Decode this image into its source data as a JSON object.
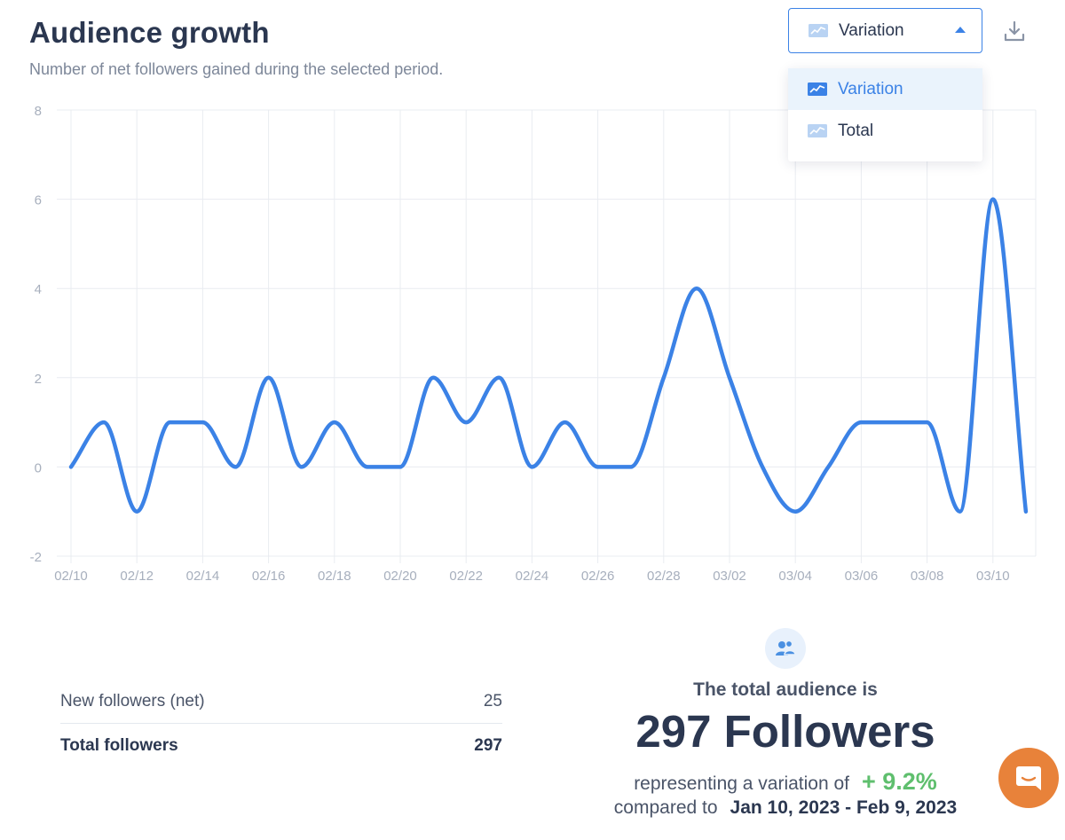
{
  "header": {
    "title": "Audience growth",
    "subtitle": "Number of net followers gained during the selected period."
  },
  "view_select": {
    "selected": "Variation",
    "options": [
      {
        "label": "Variation",
        "active": true
      },
      {
        "label": "Total",
        "active": false
      }
    ]
  },
  "icons": {
    "download": "download-icon",
    "chart": "line-chart-icon",
    "audience": "users-icon",
    "chat": "chat-icon"
  },
  "colors": {
    "accent": "#3b82e6",
    "positive": "#5fbf6e",
    "chat": "#e8823a"
  },
  "chart_data": {
    "type": "line",
    "title": "",
    "xlabel": "",
    "ylabel": "",
    "ylim": [
      -2,
      8
    ],
    "y_ticks": [
      -2,
      0,
      2,
      4,
      6,
      8
    ],
    "x_ticks": [
      "02/10",
      "02/12",
      "02/14",
      "02/16",
      "02/18",
      "02/20",
      "02/22",
      "02/24",
      "02/26",
      "02/28",
      "03/02",
      "03/04",
      "03/06",
      "03/08",
      "03/10"
    ],
    "categories": [
      "02/10",
      "02/11",
      "02/12",
      "02/13",
      "02/14",
      "02/15",
      "02/16",
      "02/17",
      "02/18",
      "02/19",
      "02/20",
      "02/21",
      "02/22",
      "02/23",
      "02/24",
      "02/25",
      "02/26",
      "02/27",
      "02/28",
      "03/01",
      "03/02",
      "03/03",
      "03/04",
      "03/05",
      "03/06",
      "03/07",
      "03/08",
      "03/09",
      "03/10",
      "03/11"
    ],
    "series": [
      {
        "name": "Variation",
        "values": [
          0,
          1,
          -1,
          1,
          1,
          0,
          2,
          0,
          1,
          0,
          0,
          2,
          1,
          2,
          0,
          1,
          0,
          0,
          2,
          4,
          2,
          0,
          -1,
          0,
          1,
          1,
          1,
          -1,
          6,
          -1
        ]
      }
    ],
    "grid": true,
    "legend": "none"
  },
  "stats": {
    "new_followers_label": "New followers (net)",
    "new_followers_value": "25",
    "total_followers_label": "Total followers",
    "total_followers_value": "297"
  },
  "audience": {
    "heading": "The total audience is",
    "count": "297 Followers",
    "variation_text": "representing a variation of",
    "variation_value": "+ 9.2%",
    "compared_text": "compared to",
    "date_range": "Jan 10, 2023 - Feb 9, 2023"
  }
}
